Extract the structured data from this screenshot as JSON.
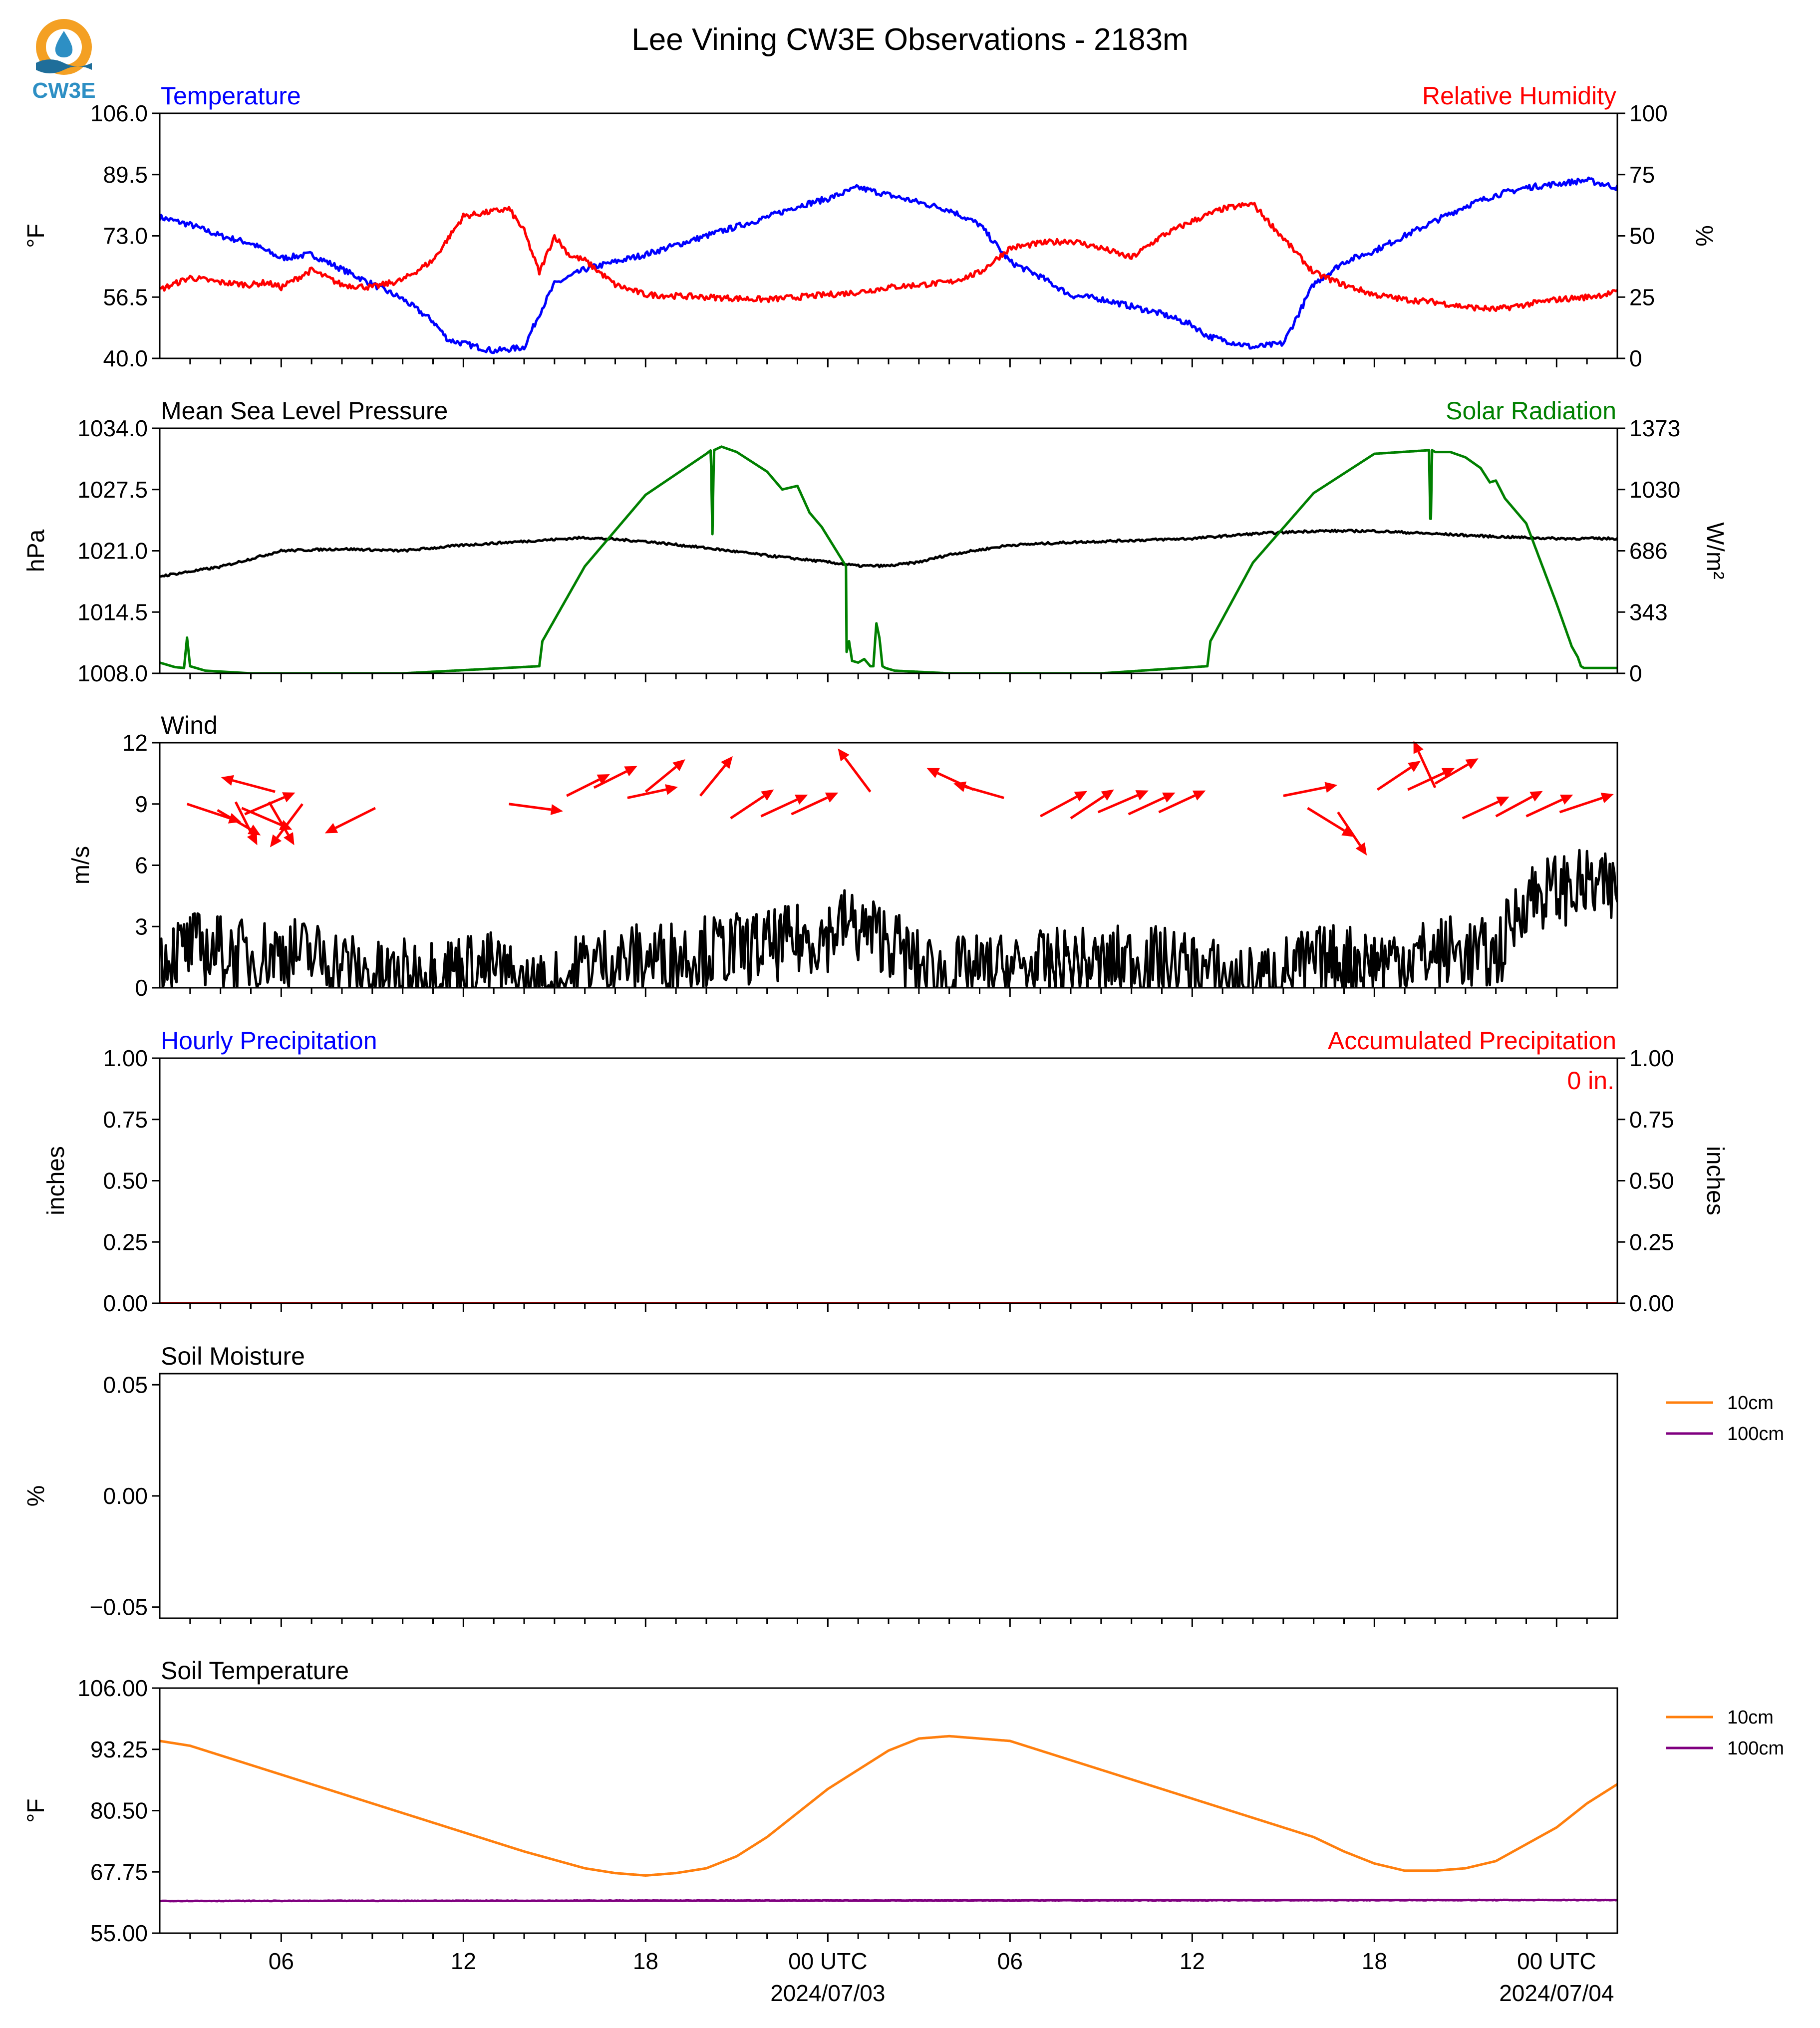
{
  "title": "Lee Vining CW3E Observations - 2183m",
  "logo": {
    "text": "CW3E",
    "colors": {
      "sun": "#f4a023",
      "drop": "#2d8fc4",
      "waves": "#1f6e9a"
    }
  },
  "colors": {
    "blue": "#0000ff",
    "red": "#ff0000",
    "green": "#008000",
    "black": "#000000",
    "orange": "#ff7f0e",
    "purple": "#800080"
  },
  "x_axis": {
    "range_hours": [
      -22,
      26
    ],
    "ticks_hours": [
      -21,
      -20,
      -19,
      -18,
      -17,
      -16,
      -15,
      -14,
      -13,
      -12,
      -11,
      -10,
      -9,
      -8,
      -7,
      -6,
      -5,
      -4,
      -3,
      -2,
      -1,
      0,
      1,
      2,
      3,
      4,
      5,
      6,
      7,
      8,
      9,
      10,
      11,
      12,
      13,
      14,
      15,
      16,
      17,
      18,
      19,
      20,
      21,
      22,
      23,
      24,
      25
    ],
    "labels": [
      {
        "hour": -18,
        "text": "06"
      },
      {
        "hour": -12,
        "text": "12"
      },
      {
        "hour": -6,
        "text": "18"
      },
      {
        "hour": 0,
        "text": "00 UTC",
        "date": "2024/07/03"
      },
      {
        "hour": 6,
        "text": "06"
      },
      {
        "hour": 12,
        "text": "12"
      },
      {
        "hour": 18,
        "text": "18"
      },
      {
        "hour": 24,
        "text": "00 UTC",
        "date": "2024/07/04"
      }
    ]
  },
  "chart_data": [
    {
      "type": "line",
      "title": "Temperature",
      "title_right": "Relative Humidity",
      "ylabel": "°F",
      "ylabel_right": "%",
      "ylim": [
        40,
        106
      ],
      "ylim_right": [
        0,
        100
      ],
      "yticks": [
        "106.0",
        "89.5",
        "73.0",
        "56.5",
        "40.0"
      ],
      "yticks_right": [
        "100",
        "75",
        "50",
        "25",
        "0"
      ],
      "series": [
        {
          "name": "Temperature",
          "axis": "left",
          "color": "#0000ff",
          "x": [
            -22,
            -21,
            -20,
            -19,
            -18.5,
            -18,
            -17,
            -16.5,
            -16,
            -15,
            -14,
            -13,
            -12.5,
            -12,
            -11.5,
            -11,
            -10,
            -9.5,
            -9,
            -8,
            -6,
            -4,
            -2,
            -1,
            0,
            1,
            2,
            3,
            4,
            5,
            6,
            7,
            8,
            9,
            10,
            11,
            12,
            12.5,
            13,
            13.5,
            14,
            15,
            16,
            17,
            18,
            19,
            20,
            21,
            22,
            23,
            24,
            25,
            26
          ],
          "values": [
            78,
            76,
            73,
            71,
            69,
            67,
            68,
            66,
            64,
            60,
            56,
            50,
            45,
            44,
            43,
            42,
            43,
            52,
            60,
            64,
            68,
            73,
            78,
            81,
            83,
            86,
            84,
            82,
            80,
            76,
            66,
            62,
            57,
            56,
            54,
            52,
            49,
            46,
            45,
            44,
            43,
            44,
            60,
            66,
            69,
            73,
            77,
            81,
            84,
            86,
            87,
            88,
            86
          ],
          "noise": 0.8
        },
        {
          "name": "Relative Humidity",
          "axis": "right",
          "color": "#ff0000",
          "x": [
            -22,
            -21,
            -20,
            -19,
            -18.5,
            -18,
            -17,
            -16,
            -15,
            -14,
            -13,
            -12,
            -11,
            -10.5,
            -10,
            -9.5,
            -9,
            -8.5,
            -8,
            -7,
            -6,
            -4,
            -2,
            -1,
            0,
            1,
            2,
            3,
            4,
            5,
            6,
            7,
            8,
            9,
            10,
            11,
            12,
            13,
            14,
            15,
            16,
            17,
            18,
            19,
            20,
            21,
            22,
            23,
            24,
            25,
            26
          ],
          "values": [
            28,
            33,
            31,
            30,
            31,
            29,
            36,
            30,
            29,
            32,
            40,
            58,
            60,
            61,
            52,
            35,
            50,
            42,
            40,
            30,
            26,
            25,
            24,
            25,
            26,
            27,
            29,
            30,
            31,
            35,
            45,
            47,
            48,
            45,
            41,
            50,
            56,
            61,
            63,
            49,
            35,
            30,
            26,
            24,
            23,
            21,
            20,
            22,
            24,
            25,
            27
          ],
          "noise": 1.2
        }
      ]
    },
    {
      "type": "line",
      "title": "Mean Sea Level Pressure",
      "title_right": "Solar Radiation",
      "ylabel": "hPa",
      "ylabel_right": "W/m²",
      "ylim": [
        1008,
        1034
      ],
      "ylim_right": [
        0,
        1373
      ],
      "yticks": [
        "1034.0",
        "1027.5",
        "1021.0",
        "1014.5",
        "1008.0"
      ],
      "yticks_right": [
        "1373",
        "1030",
        "686",
        "343",
        "0"
      ],
      "series": [
        {
          "name": "Mean Sea Level Pressure",
          "axis": "left",
          "color": "#000000",
          "x": [
            -22,
            -20,
            -18,
            -16,
            -14,
            -12,
            -10,
            -8,
            -6,
            -4,
            -2,
            0,
            1,
            2,
            3,
            4,
            6,
            8,
            10,
            12,
            14,
            16,
            18,
            20,
            22,
            24,
            26
          ],
          "values": [
            1018.3,
            1019.3,
            1021.0,
            1021.2,
            1021.0,
            1021.6,
            1022.0,
            1022.4,
            1022.0,
            1021.3,
            1020.5,
            1019.8,
            1019.4,
            1019.4,
            1019.8,
            1020.6,
            1021.6,
            1021.9,
            1022.1,
            1022.3,
            1022.8,
            1023.1,
            1023.1,
            1022.8,
            1022.5,
            1022.3,
            1022.3
          ],
          "noise": 0.12
        },
        {
          "name": "Solar Radiation",
          "axis": "right",
          "color": "#008000",
          "x": [
            -22,
            -21.5,
            -21.2,
            -21.1,
            -21,
            -20.8,
            -20.5,
            -19,
            -14,
            -9.5,
            -9.4,
            -8,
            -6,
            -4,
            -3.85,
            -3.8,
            -3.75,
            -3.5,
            -3,
            -2,
            -1.5,
            -1,
            -0.6,
            -0.2,
            0.6,
            0.62,
            0.7,
            0.8,
            1.0,
            1.2,
            1.4,
            1.5,
            1.6,
            1.7,
            1.8,
            1.9,
            2.2,
            4,
            9,
            12.5,
            12.6,
            14,
            16,
            18,
            19.8,
            19.85,
            19.9,
            20,
            20.5,
            21,
            21.5,
            21.8,
            22,
            22.3,
            23,
            24,
            24.5,
            24.7,
            24.8,
            24.9,
            26
          ],
          "values": [
            60,
            35,
            30,
            200,
            40,
            30,
            15,
            0,
            0,
            40,
            180,
            600,
            1000,
            1230,
            1250,
            780,
            1250,
            1270,
            1240,
            1130,
            1030,
            1050,
            900,
            820,
            600,
            120,
            180,
            70,
            60,
            80,
            40,
            40,
            280,
            200,
            40,
            30,
            15,
            0,
            0,
            40,
            180,
            620,
            1010,
            1230,
            1250,
            770,
            1250,
            1240,
            1240,
            1210,
            1150,
            1070,
            1080,
            980,
            840,
            390,
            150,
            90,
            40,
            30,
            30
          ],
          "noise": 0
        }
      ]
    },
    {
      "type": "line",
      "title": "Wind",
      "ylabel": "m/s",
      "ylim": [
        0,
        12
      ],
      "yticks": [
        "12",
        "9",
        "6",
        "3",
        "0"
      ],
      "series": [
        {
          "name": "Wind",
          "axis": "left",
          "color": "#000000",
          "x": [
            -22,
            -21,
            -20,
            -19,
            -18,
            -17,
            -16,
            -15,
            -14,
            -13,
            -12,
            -11,
            -10,
            -9,
            -8,
            -7,
            -6,
            -5,
            -4,
            -3,
            -2,
            -1,
            0,
            0.5,
            1,
            2,
            3,
            4,
            5,
            6,
            7,
            8,
            9,
            10,
            11,
            12,
            13,
            14,
            15,
            16,
            17,
            18,
            19,
            20,
            20.5,
            21,
            22,
            23,
            24,
            25,
            26
          ],
          "values": [
            1.5,
            2.0,
            1.8,
            1.5,
            1.8,
            1.6,
            1.2,
            0.5,
            0.6,
            0.8,
            1.0,
            1.0,
            0.0,
            0.0,
            1.2,
            1.3,
            1.4,
            1.6,
            1.8,
            1.9,
            2.0,
            2.3,
            2.6,
            3.2,
            2.9,
            2.4,
            1.0,
            0.7,
            0.8,
            0.9,
            1.0,
            1.2,
            1.1,
            1.4,
            1.2,
            1.0,
            0.5,
            0.2,
            0.8,
            1.2,
            1.4,
            1.3,
            1.5,
            1.6,
            1.8,
            1.7,
            1.5,
            4.5,
            4.8,
            5.0,
            4.6
          ],
          "noise": 1.3
        }
      ],
      "arrows": [
        {
          "x": -21.1,
          "y": 9.0,
          "u": 1.5,
          "v": -0.5
        },
        {
          "x": -20.1,
          "y": 8.7,
          "u": 1.2,
          "v": -0.7
        },
        {
          "x": -19.5,
          "y": 9.1,
          "u": 0.6,
          "v": -1.2
        },
        {
          "x": -19.2,
          "y": 8.5,
          "u": 1.4,
          "v": 0.6
        },
        {
          "x": -19.3,
          "y": 8.8,
          "u": 1.4,
          "v": -0.6
        },
        {
          "x": -18.4,
          "y": 9.1,
          "u": 0.7,
          "v": -1.2
        },
        {
          "x": -18.2,
          "y": 9.6,
          "u": -1.5,
          "v": 0.4
        },
        {
          "x": -17.3,
          "y": 9.0,
          "u": -0.9,
          "v": -1.2
        },
        {
          "x": -14.9,
          "y": 8.8,
          "u": -1.4,
          "v": -0.7
        },
        {
          "x": -10.5,
          "y": 9.0,
          "u": 1.5,
          "v": -0.2
        },
        {
          "x": -8.6,
          "y": 9.4,
          "u": 1.2,
          "v": 0.6
        },
        {
          "x": -7.7,
          "y": 9.8,
          "u": 1.2,
          "v": 0.6
        },
        {
          "x": -6.6,
          "y": 9.3,
          "u": 1.4,
          "v": 0.3
        },
        {
          "x": -6.0,
          "y": 9.6,
          "u": 1.1,
          "v": 0.9
        },
        {
          "x": -4.2,
          "y": 9.4,
          "u": 0.9,
          "v": 1.1
        },
        {
          "x": -3.2,
          "y": 8.3,
          "u": 1.2,
          "v": 0.8
        },
        {
          "x": -2.2,
          "y": 8.4,
          "u": 1.3,
          "v": 0.6
        },
        {
          "x": -1.2,
          "y": 8.5,
          "u": 1.3,
          "v": 0.6
        },
        {
          "x": 1.4,
          "y": 9.6,
          "u": -0.9,
          "v": 1.2
        },
        {
          "x": 4.8,
          "y": 9.7,
          "u": -1.3,
          "v": 0.6
        },
        {
          "x": 5.8,
          "y": 9.3,
          "u": -1.4,
          "v": 0.4
        },
        {
          "x": 7.0,
          "y": 8.4,
          "u": 1.3,
          "v": 0.7
        },
        {
          "x": 8.0,
          "y": 8.3,
          "u": 1.2,
          "v": 0.8
        },
        {
          "x": 8.9,
          "y": 8.6,
          "u": 1.4,
          "v": 0.6
        },
        {
          "x": 9.9,
          "y": 8.5,
          "u": 1.3,
          "v": 0.6
        },
        {
          "x": 10.9,
          "y": 8.6,
          "u": 1.3,
          "v": 0.6
        },
        {
          "x": 15.0,
          "y": 9.4,
          "u": 1.5,
          "v": 0.3
        },
        {
          "x": 15.8,
          "y": 8.8,
          "u": 1.3,
          "v": -0.8
        },
        {
          "x": 16.8,
          "y": 8.6,
          "u": 0.8,
          "v": -1.2
        },
        {
          "x": 18.1,
          "y": 9.7,
          "u": 1.2,
          "v": 0.8
        },
        {
          "x": 19.1,
          "y": 9.7,
          "u": 1.3,
          "v": 0.6
        },
        {
          "x": 20.0,
          "y": 9.8,
          "u": -0.6,
          "v": 1.3
        },
        {
          "x": 20.0,
          "y": 10.0,
          "u": 1.2,
          "v": 0.7
        },
        {
          "x": 20.9,
          "y": 8.3,
          "u": 1.3,
          "v": 0.6
        },
        {
          "x": 22.0,
          "y": 8.4,
          "u": 1.3,
          "v": 0.7
        },
        {
          "x": 23.0,
          "y": 8.4,
          "u": 1.3,
          "v": 0.6
        },
        {
          "x": 24.1,
          "y": 8.6,
          "u": 1.5,
          "v": 0.5
        }
      ]
    },
    {
      "type": "line",
      "title": "Hourly Precipitation",
      "title_right": "Accumulated Precipitation",
      "ylabel": "inches",
      "ylabel_right": "inches",
      "ylim": [
        0,
        1
      ],
      "ylim_right": [
        0,
        1
      ],
      "yticks": [
        "1.00",
        "0.75",
        "0.50",
        "0.25",
        "0.00"
      ],
      "yticks_right": [
        "1.00",
        "0.75",
        "0.50",
        "0.25",
        "0.00"
      ],
      "annotation": "0 in.",
      "series": [
        {
          "name": "Hourly Precipitation",
          "axis": "left",
          "color": "#0000ff",
          "x": [
            -22,
            26
          ],
          "values": [
            0,
            0
          ],
          "noise": 0
        },
        {
          "name": "Accumulated Precipitation",
          "axis": "right",
          "color": "#ff0000",
          "x": [
            -22,
            26
          ],
          "values": [
            0,
            0
          ],
          "noise": 0
        }
      ]
    },
    {
      "type": "line",
      "title": "Soil Moisture",
      "ylabel": "%",
      "ylim": [
        -0.055,
        0.055
      ],
      "yticks": [
        "0.05",
        "0.00",
        "−0.05"
      ],
      "ytick_values": [
        0.05,
        0.0,
        -0.05
      ],
      "legend": [
        "10cm",
        "100cm"
      ],
      "legend_colors": [
        "#ff7f0e",
        "#800080"
      ],
      "series": []
    },
    {
      "type": "line",
      "title": "Soil Temperature",
      "ylabel": "°F",
      "ylim": [
        55,
        106
      ],
      "yticks": [
        "106.00",
        "93.25",
        "80.50",
        "67.75",
        "55.00"
      ],
      "legend": [
        "10cm",
        "100cm"
      ],
      "legend_colors": [
        "#ff7f0e",
        "#800080"
      ],
      "series": [
        {
          "name": "10cm",
          "axis": "left",
          "color": "#ff7f0e",
          "x": [
            -22,
            -21,
            -20,
            -18,
            -16,
            -14,
            -12,
            -10,
            -8,
            -7,
            -6,
            -5,
            -4,
            -3,
            -2,
            -1,
            0,
            1,
            2,
            3,
            4,
            6,
            8,
            10,
            12,
            14,
            16,
            17,
            18,
            19,
            20,
            21,
            22,
            23,
            24,
            25,
            26
          ],
          "values": [
            95,
            94,
            92,
            88,
            84,
            80,
            76,
            72,
            68.5,
            67.5,
            67,
            67.5,
            68.5,
            71,
            75,
            80,
            85,
            89,
            93,
            95.5,
            96,
            95,
            91,
            87,
            83,
            79,
            75,
            72,
            69.5,
            68,
            68,
            68.5,
            70,
            73.5,
            77,
            82,
            86
          ],
          "noise": 0
        },
        {
          "name": "100cm",
          "axis": "left",
          "color": "#800080",
          "x": [
            -22,
            26
          ],
          "values": [
            61.7,
            61.9
          ],
          "noise": 0.05
        }
      ]
    }
  ]
}
